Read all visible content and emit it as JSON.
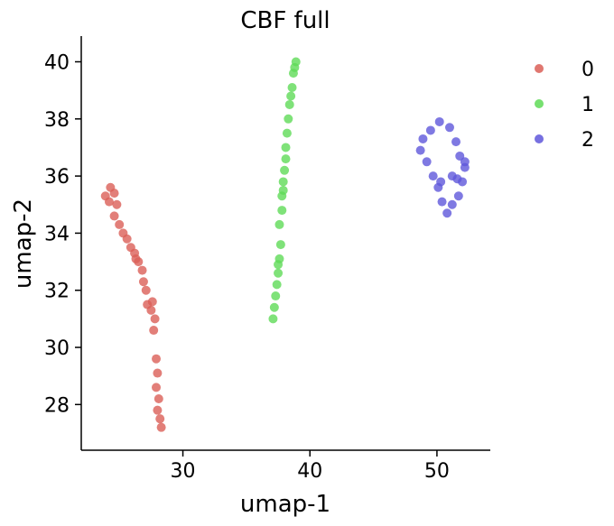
{
  "chart_data": {
    "type": "scatter",
    "title": "CBF full",
    "xlabel": "umap-1",
    "ylabel": "umap-2",
    "xlim": [
      22,
      54.2
    ],
    "ylim": [
      26.4,
      40.9
    ],
    "xticks": [
      30,
      40,
      50
    ],
    "yticks": [
      28,
      30,
      32,
      34,
      36,
      38,
      40
    ],
    "grid": false,
    "legend_position": "right",
    "series": [
      {
        "name": "0",
        "color": "#db5f57",
        "points": [
          [
            23.9,
            35.3
          ],
          [
            24.3,
            35.6
          ],
          [
            24.6,
            35.4
          ],
          [
            24.8,
            35.0
          ],
          [
            24.6,
            34.6
          ],
          [
            25.0,
            34.3
          ],
          [
            25.3,
            34.0
          ],
          [
            25.6,
            33.8
          ],
          [
            25.9,
            33.5
          ],
          [
            26.2,
            33.3
          ],
          [
            26.5,
            33.0
          ],
          [
            26.8,
            32.7
          ],
          [
            26.9,
            32.3
          ],
          [
            27.1,
            32.0
          ],
          [
            27.2,
            31.5
          ],
          [
            27.5,
            31.3
          ],
          [
            27.8,
            31.0
          ],
          [
            27.7,
            30.6
          ],
          [
            27.9,
            29.6
          ],
          [
            28.0,
            29.1
          ],
          [
            27.9,
            28.6
          ],
          [
            28.1,
            28.2
          ],
          [
            28.0,
            27.8
          ],
          [
            28.2,
            27.5
          ],
          [
            28.3,
            27.2
          ],
          [
            24.2,
            35.1
          ],
          [
            26.3,
            33.1
          ],
          [
            27.6,
            31.6
          ]
        ]
      },
      {
        "name": "1",
        "color": "#5fdb57",
        "points": [
          [
            38.9,
            40.0
          ],
          [
            38.7,
            39.6
          ],
          [
            38.6,
            39.1
          ],
          [
            38.4,
            38.5
          ],
          [
            38.3,
            38.0
          ],
          [
            38.2,
            37.5
          ],
          [
            38.1,
            37.0
          ],
          [
            38.1,
            36.6
          ],
          [
            38.0,
            36.2
          ],
          [
            37.9,
            35.8
          ],
          [
            37.8,
            35.3
          ],
          [
            37.8,
            34.8
          ],
          [
            37.6,
            34.3
          ],
          [
            37.7,
            33.6
          ],
          [
            37.6,
            33.1
          ],
          [
            37.5,
            32.6
          ],
          [
            37.4,
            32.2
          ],
          [
            37.3,
            31.8
          ],
          [
            37.2,
            31.4
          ],
          [
            37.1,
            31.0
          ],
          [
            38.8,
            39.8
          ],
          [
            38.5,
            38.8
          ],
          [
            37.9,
            35.5
          ],
          [
            37.5,
            32.9
          ]
        ]
      },
      {
        "name": "2",
        "color": "#5f57db",
        "points": [
          [
            50.2,
            37.9
          ],
          [
            51.0,
            37.7
          ],
          [
            51.5,
            37.2
          ],
          [
            51.8,
            36.7
          ],
          [
            52.2,
            36.3
          ],
          [
            52.0,
            35.8
          ],
          [
            51.7,
            35.3
          ],
          [
            51.2,
            35.0
          ],
          [
            50.8,
            34.7
          ],
          [
            50.4,
            35.1
          ],
          [
            50.1,
            35.6
          ],
          [
            49.7,
            36.0
          ],
          [
            49.2,
            36.5
          ],
          [
            48.7,
            36.9
          ],
          [
            48.9,
            37.3
          ],
          [
            49.5,
            37.6
          ],
          [
            51.2,
            36.0
          ],
          [
            51.6,
            35.9
          ],
          [
            50.3,
            35.8
          ],
          [
            52.2,
            36.5
          ]
        ]
      }
    ]
  }
}
